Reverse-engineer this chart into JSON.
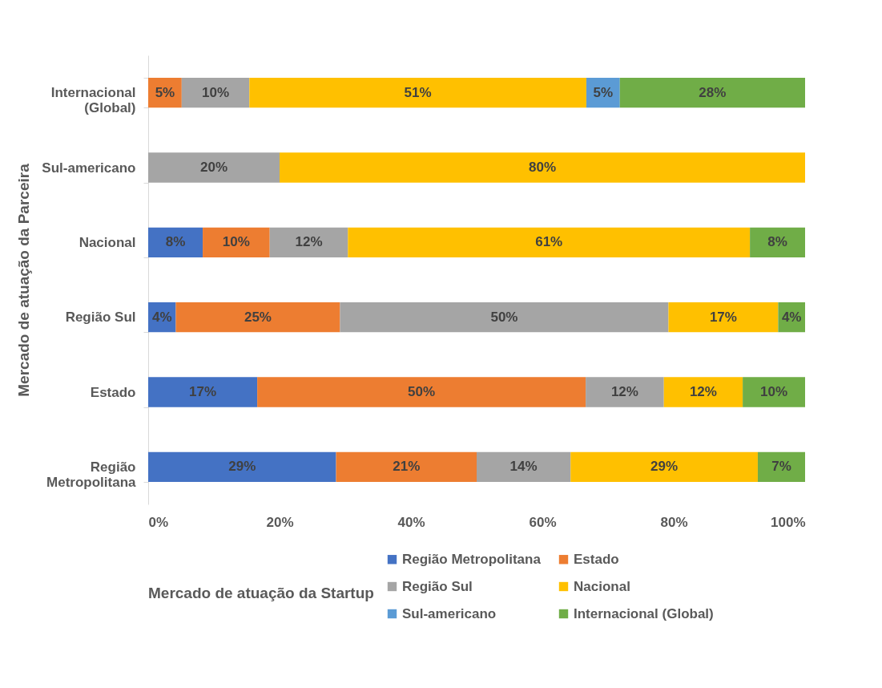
{
  "chart_data": {
    "type": "bar",
    "orientation": "horizontal",
    "stacked": true,
    "ylabel": "Mercado de atuação da Parceira",
    "legend_title": "Mercado de atuação da Startup",
    "legend": "bottom",
    "grid": false,
    "categories": [
      "Internacional (Global)",
      "Sul-americano",
      "Nacional",
      "Região Sul",
      "Estado",
      "Região Metropolitana"
    ],
    "xlim": [
      0,
      100
    ],
    "xticks": [
      {
        "value": 0,
        "label": "0%"
      },
      {
        "value": 20,
        "label": "20%"
      },
      {
        "value": 40,
        "label": "40%"
      },
      {
        "value": 60,
        "label": "60%"
      },
      {
        "value": 80,
        "label": "80%"
      },
      {
        "value": 100,
        "label": "100%"
      }
    ],
    "series": [
      {
        "name": "Região Metropolitana",
        "color": "#4472c4",
        "values": [
          null,
          null,
          8.3,
          4.2,
          16.6,
          28.6
        ],
        "value_labels": [
          null,
          null,
          "8%",
          "4%",
          "17%",
          "29%"
        ]
      },
      {
        "name": "Estado",
        "color": "#ed7d31",
        "values": [
          5.1,
          null,
          10.2,
          25,
          50,
          21.4
        ],
        "value_labels": [
          "5%",
          null,
          "10%",
          "25%",
          "50%",
          "21%"
        ]
      },
      {
        "name": "Região Sul",
        "color": "#a5a5a5",
        "values": [
          10.3,
          20,
          11.9,
          50,
          11.9,
          14.3
        ],
        "value_labels": [
          "10%",
          "20%",
          "12%",
          "50%",
          "12%",
          "14%"
        ]
      },
      {
        "name": "Nacional",
        "color": "#ffc000",
        "values": [
          51.3,
          80,
          61.2,
          16.7,
          12,
          28.5
        ],
        "value_labels": [
          "51%",
          "80%",
          "61%",
          "17%",
          "12%",
          "29%"
        ]
      },
      {
        "name": "Sul-americano",
        "color": "#5b9bd5",
        "values": [
          5.1,
          null,
          null,
          null,
          null,
          null
        ],
        "value_labels": [
          "5%",
          null,
          null,
          null,
          null,
          null
        ]
      },
      {
        "name": "Internacional (Global)",
        "color": "#70ad47",
        "values": [
          28.2,
          null,
          8.4,
          4.1,
          9.5,
          7.2
        ],
        "value_labels": [
          "28%",
          null,
          "8%",
          "4%",
          "10%",
          "7%"
        ]
      }
    ]
  }
}
